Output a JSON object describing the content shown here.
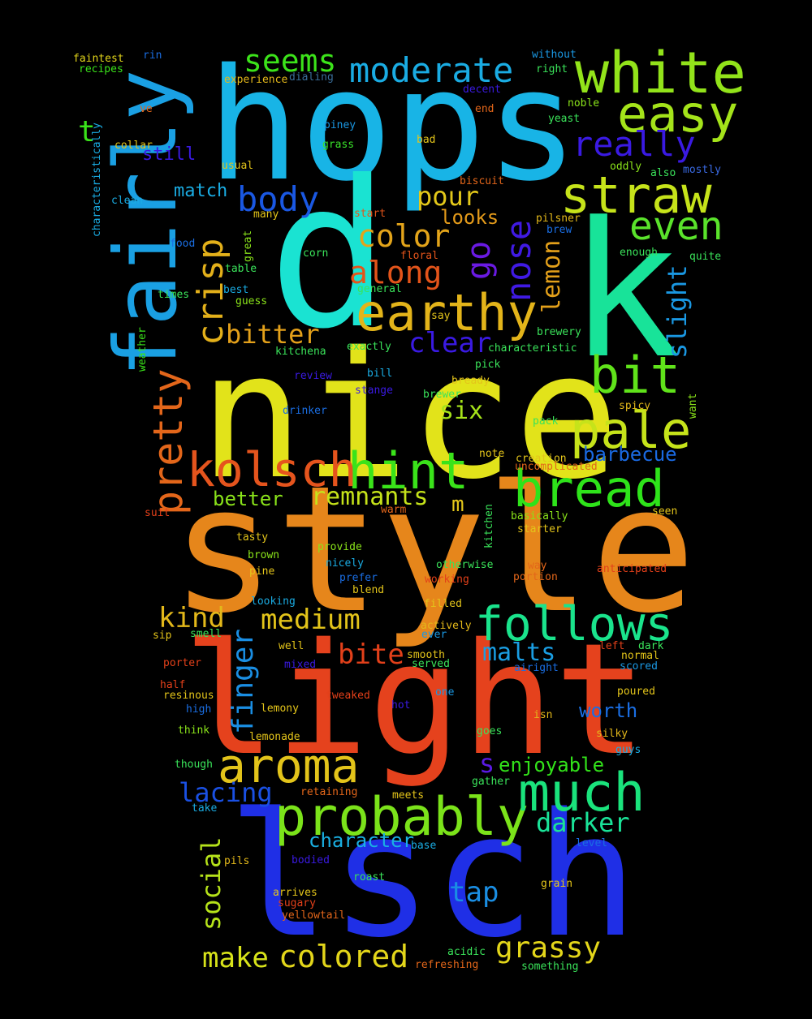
{
  "words": [
    {
      "text": "hops",
      "color": "#18b4e6"
    },
    {
      "text": "nice",
      "color": "#e2e31a"
    },
    {
      "text": "style",
      "color": "#e6861b"
    },
    {
      "text": "light",
      "color": "#e5421d"
    },
    {
      "text": "lsch",
      "color": "#1f2fe6"
    },
    {
      "text": "d",
      "color": "#1ae3d2"
    },
    {
      "text": "k",
      "color": "#18e399"
    },
    {
      "text": "fairly",
      "color": "#1aa0e3"
    },
    {
      "text": "white",
      "color": "#92e31a"
    },
    {
      "text": "easy",
      "color": "#a4e31a"
    },
    {
      "text": "straw",
      "color": "#c6e31a"
    },
    {
      "text": "even",
      "color": "#5ae32b"
    },
    {
      "text": "earthy",
      "color": "#e3b41a"
    },
    {
      "text": "probably",
      "color": "#7be31a"
    },
    {
      "text": "much",
      "color": "#1ae37c"
    },
    {
      "text": "follows",
      "color": "#1ae38c"
    },
    {
      "text": "bread",
      "color": "#2ee31a"
    },
    {
      "text": "bit",
      "color": "#60e31a"
    },
    {
      "text": "pale",
      "color": "#c6e31a"
    },
    {
      "text": "hint",
      "color": "#3ae31a"
    },
    {
      "text": "kolsch",
      "color": "#e5541d"
    },
    {
      "text": "aroma",
      "color": "#e3c41a"
    },
    {
      "text": "pretty",
      "color": "#e3661a"
    },
    {
      "text": "crisp",
      "color": "#e3b01a"
    },
    {
      "text": "body",
      "color": "#1a58e3"
    },
    {
      "text": "color",
      "color": "#e3a41a"
    },
    {
      "text": "along",
      "color": "#e3541a"
    },
    {
      "text": "moderate",
      "color": "#1aace3"
    },
    {
      "text": "seems",
      "color": "#3ce31a"
    },
    {
      "text": "really",
      "color": "#3a1ae3"
    },
    {
      "text": "go",
      "color": "#6a1ae3"
    },
    {
      "text": "nose",
      "color": "#401ae3"
    },
    {
      "text": "pour",
      "color": "#e3c81a"
    },
    {
      "text": "looks",
      "color": "#e39a1a"
    },
    {
      "text": "lemon",
      "color": "#e3a01a"
    },
    {
      "text": "slight",
      "color": "#1a98e3"
    },
    {
      "text": "bitter",
      "color": "#e3a01a"
    },
    {
      "text": "clear",
      "color": "#3a1ae3"
    },
    {
      "text": "six",
      "color": "#a6e31a"
    },
    {
      "text": "remnants",
      "color": "#c6e31a"
    },
    {
      "text": "better",
      "color": "#8ae31a"
    },
    {
      "text": "m",
      "color": "#e3c61a"
    },
    {
      "text": "barbecue",
      "color": "#1a6ae3"
    },
    {
      "text": "kind",
      "color": "#e3b81a"
    },
    {
      "text": "medium",
      "color": "#e3c41a"
    },
    {
      "text": "finger",
      "color": "#1a8ee3"
    },
    {
      "text": "bite",
      "color": "#e3401a"
    },
    {
      "text": "malts",
      "color": "#1a9ee3"
    },
    {
      "text": "worth",
      "color": "#1a6ee3"
    },
    {
      "text": "s",
      "color": "#5a1ae3"
    },
    {
      "text": "enjoyable",
      "color": "#32e31a"
    },
    {
      "text": "lacing",
      "color": "#1a50e3"
    },
    {
      "text": "social",
      "color": "#b6e31a"
    },
    {
      "text": "character",
      "color": "#1ab0e3"
    },
    {
      "text": "darker",
      "color": "#1ae398"
    },
    {
      "text": "tap",
      "color": "#1a8ee3"
    },
    {
      "text": "make",
      "color": "#d8e31a"
    },
    {
      "text": "colored",
      "color": "#e3d61a"
    },
    {
      "text": "grassy",
      "color": "#e3d61a"
    },
    {
      "text": "t",
      "color": "#3ae31a"
    },
    {
      "text": "still",
      "color": "#3a1ae3"
    },
    {
      "text": "match",
      "color": "#1aace3"
    },
    {
      "text": "faintest",
      "color": "#e3d61a"
    },
    {
      "text": "recipes",
      "color": "#3ae31a"
    },
    {
      "text": "rin",
      "color": "#1a6ee3"
    },
    {
      "text": "experience",
      "color": "#e3b81a"
    },
    {
      "text": "dialing",
      "color": "#3a6e9a"
    },
    {
      "text": "without",
      "color": "#1a98e3"
    },
    {
      "text": "right",
      "color": "#3ae35a"
    },
    {
      "text": "decent",
      "color": "#3a1ae3"
    },
    {
      "text": "noble",
      "color": "#8ae31a"
    },
    {
      "text": "end",
      "color": "#e3661a"
    },
    {
      "text": "yeast",
      "color": "#3ae35a"
    },
    {
      "text": "ve",
      "color": "#e3661a"
    },
    {
      "text": "collar",
      "color": "#e3c41a"
    },
    {
      "text": "piney",
      "color": "#1a98e3"
    },
    {
      "text": "grass",
      "color": "#3ae32a"
    },
    {
      "text": "bad",
      "color": "#e3c41a"
    },
    {
      "text": "characteristically",
      "color": "#1aace3"
    },
    {
      "text": "biscuit",
      "color": "#e3661a"
    },
    {
      "text": "oddly",
      "color": "#8ae31a"
    },
    {
      "text": "also",
      "color": "#3ae35a"
    },
    {
      "text": "mostly",
      "color": "#3a6ae3"
    },
    {
      "text": "usual",
      "color": "#e3c41a"
    },
    {
      "text": "clean",
      "color": "#1aace3"
    },
    {
      "text": "many",
      "color": "#e3c41a"
    },
    {
      "text": "start",
      "color": "#e3541a"
    },
    {
      "text": "pilsner",
      "color": "#e3b81a"
    },
    {
      "text": "brew",
      "color": "#1a6ee3"
    },
    {
      "text": "food",
      "color": "#1a6ee3"
    },
    {
      "text": "great",
      "color": "#8ae31a"
    },
    {
      "text": "corn",
      "color": "#3ae35a"
    },
    {
      "text": "floral",
      "color": "#e3541a"
    },
    {
      "text": "enough",
      "color": "#3ae35a"
    },
    {
      "text": "quite",
      "color": "#3ae35a"
    },
    {
      "text": "table",
      "color": "#3ae35a"
    },
    {
      "text": "best",
      "color": "#1aace3"
    },
    {
      "text": "general",
      "color": "#3ae35a"
    },
    {
      "text": "times",
      "color": "#3ae35a"
    },
    {
      "text": "guess",
      "color": "#8ae31a"
    },
    {
      "text": "say",
      "color": "#e3c41a"
    },
    {
      "text": "brewery",
      "color": "#3ae35a"
    },
    {
      "text": "weather",
      "color": "#3ae31a"
    },
    {
      "text": "kitchena",
      "color": "#3ae35a"
    },
    {
      "text": "exactly",
      "color": "#3ae35a"
    },
    {
      "text": "characteristic",
      "color": "#3ae35a"
    },
    {
      "text": "pick",
      "color": "#3ae35a"
    },
    {
      "text": "review",
      "color": "#3a1ae3"
    },
    {
      "text": "bill",
      "color": "#1aace3"
    },
    {
      "text": "bready",
      "color": "#e3c41a"
    },
    {
      "text": "stange",
      "color": "#3a1ae3"
    },
    {
      "text": "brewer",
      "color": "#3ae35a"
    },
    {
      "text": "spicy",
      "color": "#e3b81a"
    },
    {
      "text": "want",
      "color": "#8ae31a"
    },
    {
      "text": "drinker",
      "color": "#1a6ee3"
    },
    {
      "text": "pack",
      "color": "#3ae35a"
    },
    {
      "text": "note",
      "color": "#e3c41a"
    },
    {
      "text": "creation",
      "color": "#e3c41a"
    },
    {
      "text": "uncomplicated",
      "color": "#e3661a"
    },
    {
      "text": "suit",
      "color": "#e3401a"
    },
    {
      "text": "warm",
      "color": "#e3661a"
    },
    {
      "text": "kitchen",
      "color": "#3ae35a"
    },
    {
      "text": "basically",
      "color": "#8ae31a"
    },
    {
      "text": "seen",
      "color": "#e3c41a"
    },
    {
      "text": "starter",
      "color": "#e3c41a"
    },
    {
      "text": "tasty",
      "color": "#e3c41a"
    },
    {
      "text": "provide",
      "color": "#8ae31a"
    },
    {
      "text": "brown",
      "color": "#8ae31a"
    },
    {
      "text": "nicely",
      "color": "#1aace3"
    },
    {
      "text": "otherwise",
      "color": "#3ae35a"
    },
    {
      "text": "way",
      "color": "#e3661a"
    },
    {
      "text": "anticipated",
      "color": "#e3401a"
    },
    {
      "text": "pine",
      "color": "#e3c41a"
    },
    {
      "text": "prefer",
      "color": "#1a6ee3"
    },
    {
      "text": "working",
      "color": "#e3401a"
    },
    {
      "text": "portion",
      "color": "#e3661a"
    },
    {
      "text": "blend",
      "color": "#e3c41a"
    },
    {
      "text": "looking",
      "color": "#1aace3"
    },
    {
      "text": "filled",
      "color": "#e3c41a"
    },
    {
      "text": "sip",
      "color": "#e3c41a"
    },
    {
      "text": "smell",
      "color": "#3ae35a"
    },
    {
      "text": "actively",
      "color": "#e3b81a"
    },
    {
      "text": "ever",
      "color": "#1a98e3"
    },
    {
      "text": "left",
      "color": "#e3401a"
    },
    {
      "text": "dark",
      "color": "#3ae35a"
    },
    {
      "text": "well",
      "color": "#e3c41a"
    },
    {
      "text": "smooth",
      "color": "#e3c41a"
    },
    {
      "text": "normal",
      "color": "#e3c41a"
    },
    {
      "text": "mixed",
      "color": "#3a1ae3"
    },
    {
      "text": "served",
      "color": "#3ae35a"
    },
    {
      "text": "airight",
      "color": "#1a6ee3"
    },
    {
      "text": "scored",
      "color": "#1a98e3"
    },
    {
      "text": "porter",
      "color": "#e3401a"
    },
    {
      "text": "half",
      "color": "#e3401a"
    },
    {
      "text": "resinous",
      "color": "#e3c41a"
    },
    {
      "text": "tweaked",
      "color": "#e3401a"
    },
    {
      "text": "one",
      "color": "#1a98e3"
    },
    {
      "text": "poured",
      "color": "#e3c41a"
    },
    {
      "text": "high",
      "color": "#1a6ee3"
    },
    {
      "text": "lemony",
      "color": "#e3c41a"
    },
    {
      "text": "hot",
      "color": "#3a1ae3"
    },
    {
      "text": "isn",
      "color": "#e3b81a"
    },
    {
      "text": "think",
      "color": "#8ae31a"
    },
    {
      "text": "lemonade",
      "color": "#e3c41a"
    },
    {
      "text": "goes",
      "color": "#3ae35a"
    },
    {
      "text": "silky",
      "color": "#e3b81a"
    },
    {
      "text": "guys",
      "color": "#1aace3"
    },
    {
      "text": "though",
      "color": "#3ae35a"
    },
    {
      "text": "gather",
      "color": "#3ae35a"
    },
    {
      "text": "retaining",
      "color": "#e3661a"
    },
    {
      "text": "meets",
      "color": "#e3c41a"
    },
    {
      "text": "take",
      "color": "#1aace3"
    },
    {
      "text": "level",
      "color": "#1a6ee3"
    },
    {
      "text": "base",
      "color": "#1aace3"
    },
    {
      "text": "pils",
      "color": "#e3b81a"
    },
    {
      "text": "bodied",
      "color": "#3a1ae3"
    },
    {
      "text": "roast",
      "color": "#3ae35a"
    },
    {
      "text": "grain",
      "color": "#e3c41a"
    },
    {
      "text": "arrives",
      "color": "#e3c41a"
    },
    {
      "text": "sugary",
      "color": "#e3401a"
    },
    {
      "text": "yellowtail",
      "color": "#e3661a"
    },
    {
      "text": "acidic",
      "color": "#3ae35a"
    },
    {
      "text": "refreshing",
      "color": "#e3661a"
    },
    {
      "text": "something",
      "color": "#3ae35a"
    }
  ]
}
